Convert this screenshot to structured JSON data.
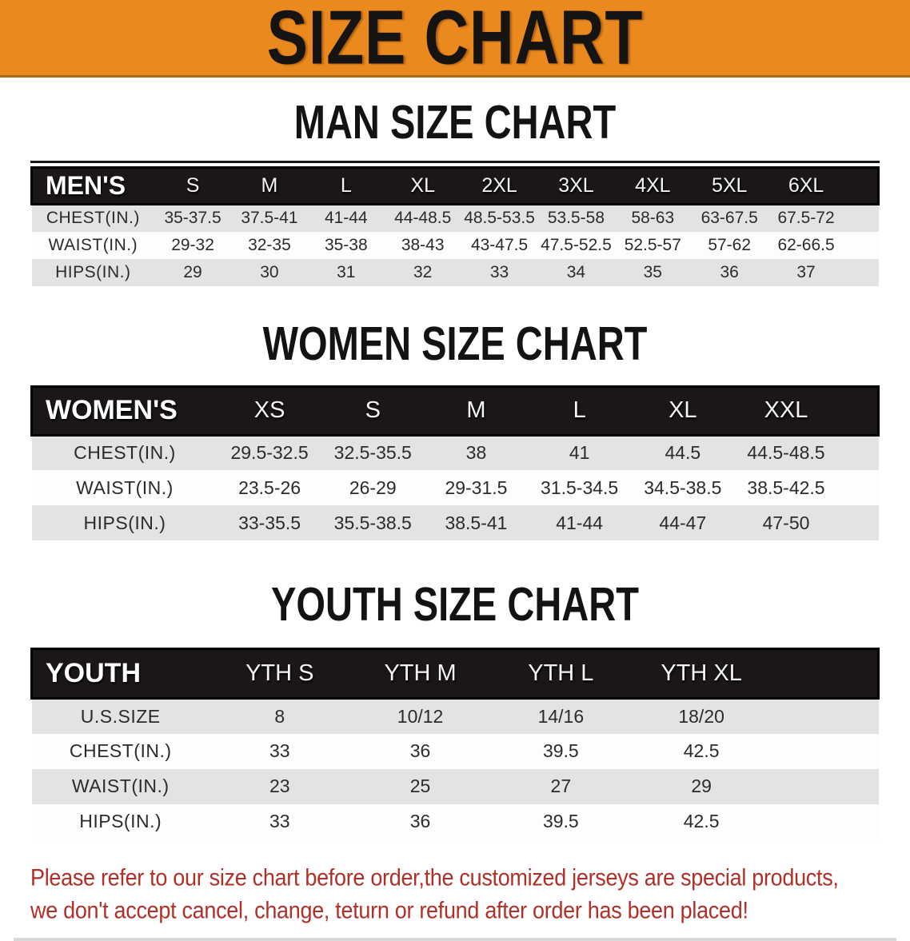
{
  "banner": {
    "title": "SIZE CHART",
    "bg_color": "#E9891E",
    "text_color": "#161313"
  },
  "sections": [
    {
      "heading": "MAN SIZE CHART",
      "table": {
        "header_label": "MEN'S",
        "columns": [
          "S",
          "M",
          "L",
          "XL",
          "2XL",
          "3XL",
          "4XL",
          "5XL",
          "6XL"
        ],
        "rows": [
          {
            "label": "CHEST(IN.)",
            "values": [
              "35-37.5",
              "37.5-41",
              "41-44",
              "44-48.5",
              "48.5-53.5",
              "53.5-58",
              "58-63",
              "63-67.5",
              "67.5-72"
            ]
          },
          {
            "label": "WAIST(IN.)",
            "values": [
              "29-32",
              "32-35",
              "35-38",
              "38-43",
              "43-47.5",
              "47.5-52.5",
              "52.5-57",
              "57-62",
              "62-66.5"
            ]
          },
          {
            "label": "HIPS(IN.)",
            "values": [
              "29",
              "30",
              "31",
              "32",
              "33",
              "34",
              "35",
              "36",
              "37"
            ]
          }
        ]
      }
    },
    {
      "heading": "WOMEN SIZE CHART",
      "table": {
        "header_label": "WOMEN'S",
        "columns": [
          "XS",
          "S",
          "M",
          "L",
          "XL",
          "XXL"
        ],
        "rows": [
          {
            "label": "CHEST(IN.)",
            "values": [
              "29.5-32.5",
              "32.5-35.5",
              "38",
              "41",
              "44.5",
              "44.5-48.5"
            ]
          },
          {
            "label": "WAIST(IN.)",
            "values": [
              "23.5-26",
              "26-29",
              "29-31.5",
              "31.5-34.5",
              "34.5-38.5",
              "38.5-42.5"
            ]
          },
          {
            "label": "HIPS(IN.)",
            "values": [
              "33-35.5",
              "35.5-38.5",
              "38.5-41",
              "41-44",
              "44-47",
              "47-50"
            ]
          }
        ]
      }
    },
    {
      "heading": "YOUTH SIZE CHART",
      "table": {
        "header_label": "YOUTH",
        "columns": [
          "YTH S",
          "YTH M",
          "YTH L",
          "YTH XL"
        ],
        "rows": [
          {
            "label": "U.S.SIZE",
            "values": [
              "8",
              "10/12",
              "14/16",
              "18/20"
            ]
          },
          {
            "label": "CHEST(IN.)",
            "values": [
              "33",
              "36",
              "39.5",
              "42.5"
            ]
          },
          {
            "label": "WAIST(IN.)",
            "values": [
              "23",
              "25",
              "27",
              "29"
            ]
          },
          {
            "label": "HIPS(IN.)",
            "values": [
              "33",
              "36",
              "39.5",
              "42.5"
            ]
          }
        ]
      }
    }
  ],
  "disclaimer": {
    "line1": "Please refer to our size chart before order,the customized jerseys are special products,",
    "line2": "we don't accept cancel, change, teturn or refund after order has been placed!",
    "color": "#B03028"
  }
}
